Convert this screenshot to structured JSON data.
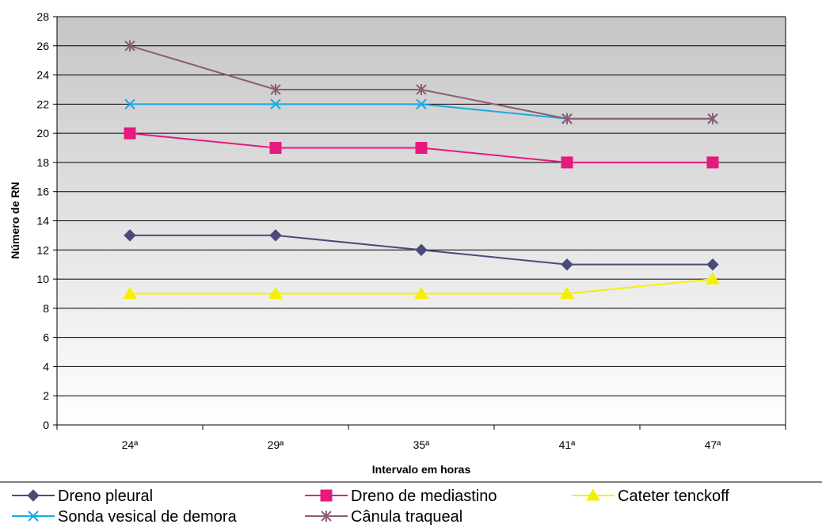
{
  "chart_data": {
    "type": "line",
    "title": "",
    "xlabel": "Intervalo em horas",
    "ylabel": "Número de RN",
    "ylim": [
      0,
      28
    ],
    "yticks": [
      0,
      2,
      4,
      6,
      8,
      10,
      12,
      14,
      16,
      18,
      20,
      22,
      24,
      26,
      28
    ],
    "categories": [
      "24ª",
      "29ª",
      "35ª",
      "41ª",
      "47ª"
    ],
    "grid": true,
    "legend_position": "bottom",
    "series": [
      {
        "name": "Dreno pleural",
        "values": [
          13,
          13,
          12,
          11,
          11
        ],
        "color": "#4b4a7c",
        "marker": "diamond"
      },
      {
        "name": "Dreno de mediastino",
        "values": [
          20,
          19,
          19,
          18,
          18
        ],
        "color": "#e6197f",
        "marker": "square"
      },
      {
        "name": "Cateter tenckoff",
        "values": [
          9,
          9,
          9,
          9,
          10
        ],
        "color": "#f5f000",
        "marker": "triangle"
      },
      {
        "name": "Sonda vesical de demora",
        "values": [
          22,
          22,
          22,
          21,
          21
        ],
        "color": "#17a9e6",
        "marker": "x"
      },
      {
        "name": "Cânula traqueal",
        "values": [
          26,
          23,
          23,
          21,
          21
        ],
        "color": "#8c5c74",
        "marker": "asterisk"
      }
    ]
  }
}
